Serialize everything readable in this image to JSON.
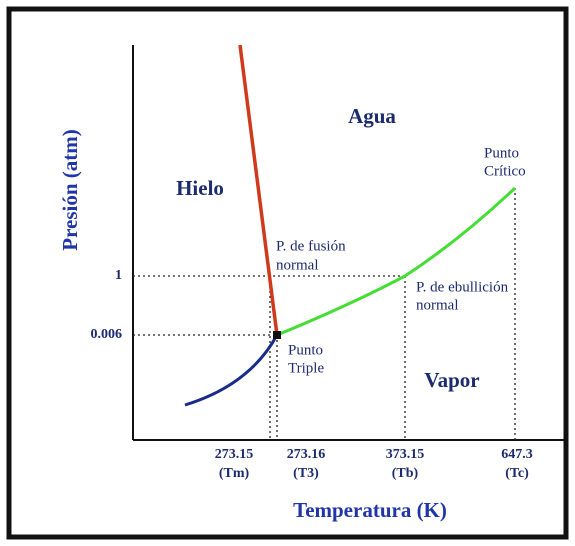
{
  "axes": {
    "y_label": "Presión (atm)",
    "x_label": "Temperatura (K)",
    "y_ticks": [
      "1",
      "0.006"
    ],
    "x_ticks": [
      {
        "value": "273.15",
        "symbol": "(Tm)"
      },
      {
        "value": "273.16",
        "symbol": "(T3)"
      },
      {
        "value": "373.15",
        "symbol": "(Tb)"
      },
      {
        "value": "647.3",
        "symbol": "(Tc)"
      }
    ]
  },
  "regions": [
    "Agua",
    "Hielo",
    "Vapor"
  ],
  "points": {
    "fusion": [
      "P. de fusión",
      "normal"
    ],
    "boiling": [
      "P. de ebullición",
      "normal"
    ],
    "critical": [
      "Punto",
      "Crítico"
    ],
    "triple": [
      "Punto",
      "Triple"
    ]
  }
}
